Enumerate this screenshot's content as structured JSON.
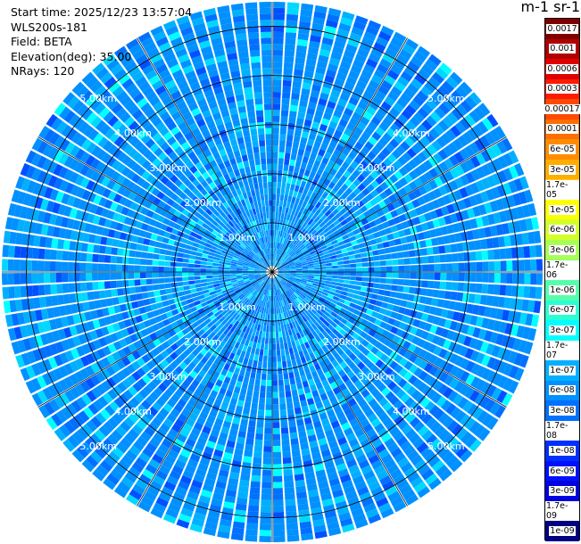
{
  "header": {
    "start_time": "Start time: 2025/12/23 13:57:04",
    "instrument": "WLS200s-181",
    "field": "Field: BETA",
    "elevation": "Elevation(deg): 35.00",
    "nrays": "NRays: 120"
  },
  "colorbar": {
    "units_label": "m-1 sr-1",
    "levels": [
      {
        "label": "0.0017",
        "color": "#800000"
      },
      {
        "label": "0.001",
        "color": "#b00000"
      },
      {
        "label": "0.0006",
        "color": "#e00000"
      },
      {
        "label": "0.0003",
        "color": "#ff1a00"
      },
      {
        "label": "0.00017",
        "color": "#ff4a00"
      },
      {
        "label": "0.0001",
        "color": "#ff6e00"
      },
      {
        "label": "6e-05",
        "color": "#ff8c00"
      },
      {
        "label": "3e-05",
        "color": "#ffad00"
      },
      {
        "label": "1.7e-05",
        "color": "#ffd000"
      },
      {
        "label": "1e-05",
        "color": "#ffff00"
      },
      {
        "label": "6e-06",
        "color": "#d4ff2a"
      },
      {
        "label": "3e-06",
        "color": "#aaff55"
      },
      {
        "label": "1.7e-06",
        "color": "#80ff80"
      },
      {
        "label": "1e-06",
        "color": "#55ffaa"
      },
      {
        "label": "6e-07",
        "color": "#2affd4"
      },
      {
        "label": "3e-07",
        "color": "#00ffff"
      },
      {
        "label": "1.7e-07",
        "color": "#00d8ff"
      },
      {
        "label": "1e-07",
        "color": "#00b0ff"
      },
      {
        "label": "6e-08",
        "color": "#0090ff"
      },
      {
        "label": "3e-08",
        "color": "#0070ff"
      },
      {
        "label": "1.7e-08",
        "color": "#0050ff"
      },
      {
        "label": "1e-08",
        "color": "#0030ff"
      },
      {
        "label": "6e-09",
        "color": "#0010ff"
      },
      {
        "label": "3e-09",
        "color": "#0000e0"
      },
      {
        "label": "1.7e-09",
        "color": "#0000b0"
      },
      {
        "label": "1e-09",
        "color": "#000080"
      }
    ]
  },
  "chart_data": {
    "type": "heatmap",
    "projection": "polar PPI",
    "field": "BETA",
    "elevation_deg": 35.0,
    "nrays": 120,
    "range_max_km": 5.5,
    "range_rings_km": [
      1,
      2,
      3,
      4,
      5
    ],
    "range_ring_labels": [
      "1.00km",
      "2.00km",
      "3.00km",
      "4.00km",
      "5.00km"
    ],
    "azimuth_lines_deg": [
      0,
      30,
      60,
      90,
      120,
      150
    ],
    "typical_value_range": [
      "3e-08",
      "3e-07"
    ],
    "dominant_value": "6e-08"
  }
}
